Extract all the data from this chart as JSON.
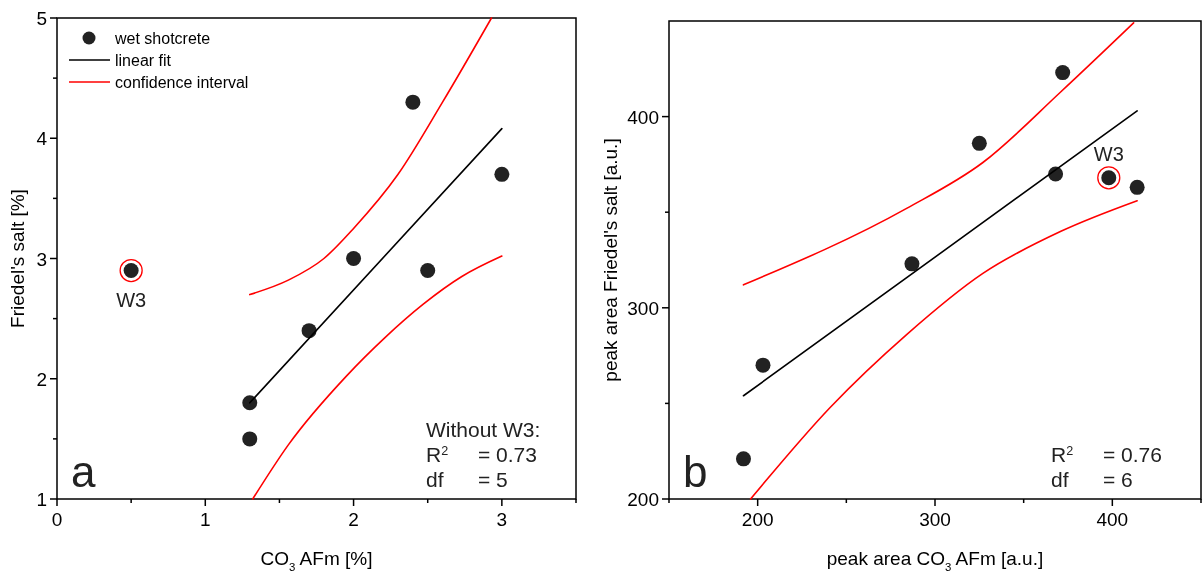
{
  "chart_data": [
    {
      "type": "scatter",
      "xlabel": "CO$_{3}$ AFm [%]",
      "ylabel": "Friedel's salt [%]",
      "xlim": [
        0,
        3.5
      ],
      "ylim": [
        1,
        5
      ],
      "xticks": [
        0,
        {
          "value": 0.5,
          "label": null
        },
        1,
        {
          "value": 1.5,
          "label": null
        },
        2,
        {
          "value": 2.5,
          "label": null
        },
        3,
        {
          "value": 3.5,
          "label": null
        }
      ],
      "yticks": [
        1,
        {
          "value": 1.5,
          "label": null
        },
        2,
        {
          "value": 2.5,
          "label": null
        },
        3,
        {
          "value": 3.5,
          "label": null
        },
        4,
        {
          "value": 4.5,
          "label": null
        },
        5
      ],
      "legend": "top left",
      "grid": false,
      "series": [
        {
          "name": "wet shotcrete",
          "marker": "circle",
          "color": "#222222",
          "x": [
            0.5,
            1.3,
            1.3,
            1.7,
            2.0,
            2.4,
            2.5,
            3.0
          ],
          "values": [
            2.9,
            1.8,
            1.5,
            2.4,
            3.0,
            4.3,
            2.9,
            3.7
          ]
        },
        {
          "name": "linear fit",
          "type": "line",
          "color": "#000000",
          "x": [
            1.3,
            3.0
          ],
          "values": [
            1.8,
            4.08
          ]
        },
        {
          "name": "confidence interval",
          "type": "line",
          "color": "#ff0000",
          "x": [
            1.3,
            1.56,
            1.8,
            2.0,
            2.3,
            2.6,
            2.93
          ],
          "values": [
            2.7,
            2.82,
            3.0,
            3.25,
            3.7,
            4.3,
            5.0
          ]
        },
        {
          "type": "line",
          "color": "#ff0000",
          "x": [
            1.32,
            1.56,
            1.95,
            2.21,
            2.47,
            2.73,
            3.0
          ],
          "values": [
            1.0,
            1.45,
            2.02,
            2.34,
            2.62,
            2.85,
            3.02
          ]
        }
      ],
      "annotations": [
        {
          "text": "W3",
          "x": 0.5,
          "y": 2.9
        },
        "a",
        "Without W3:",
        "R$^{2}$ = 0.73",
        "df = 5"
      ]
    },
    {
      "type": "scatter",
      "xlabel": "peak area CO$_{3}$ AFm [a.u.]",
      "ylabel": "peak area Friedel's salt [a.u.]",
      "xlim": [
        150,
        450
      ],
      "ylim": [
        200,
        450
      ],
      "xticks": [
        {
          "value": 150,
          "label": null
        },
        200,
        {
          "value": 250,
          "label": null
        },
        300,
        {
          "value": 350,
          "label": null
        },
        400,
        {
          "value": 450,
          "label": null
        }
      ],
      "yticks": [
        200,
        {
          "value": 250,
          "label": null
        },
        300,
        {
          "value": 350,
          "label": null
        },
        400
      ],
      "grid": false,
      "series": [
        {
          "marker": "circle",
          "color": "#222222",
          "x": [
            192,
            203,
            287,
            325,
            368,
            372,
            398,
            414
          ],
          "values": [
            221,
            270,
            323,
            386,
            370,
            423,
            368,
            363
          ]
        },
        {
          "type": "line",
          "color": "#000000",
          "x": [
            192,
            414
          ],
          "values": [
            254,
            403
          ]
        },
        {
          "type": "line",
          "color": "#ff0000",
          "x": [
            192,
            284,
            327,
            371,
            412
          ],
          "values": [
            312,
            352,
            376,
            413,
            449
          ]
        },
        {
          "type": "line",
          "color": "#ff0000",
          "x": [
            196,
            241,
            284,
            327,
            371,
            414
          ],
          "values": [
            200,
            248,
            286,
            318,
            340,
            356
          ]
        }
      ],
      "annotations": [
        {
          "text": "W3",
          "x": 398,
          "y": 368
        },
        "b",
        "R$^{2}$ = 0.76",
        "df = 6"
      ]
    }
  ]
}
